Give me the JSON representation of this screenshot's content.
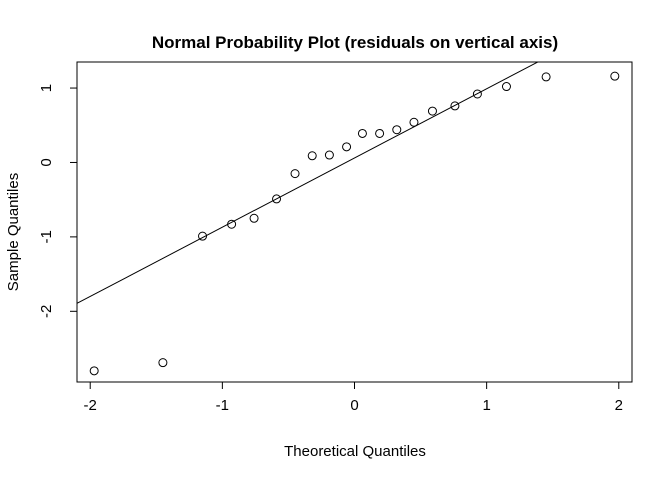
{
  "chart_data": {
    "type": "scatter",
    "title": "Normal Probability Plot (residuals on vertical axis)",
    "xlabel": "Theoretical Quantiles",
    "ylabel": "Sample Quantiles",
    "xlim": [
      -2.1,
      2.1
    ],
    "ylim": [
      -2.95,
      1.35
    ],
    "x_ticks": [
      -2,
      -1,
      0,
      1,
      2
    ],
    "x_tick_labels": [
      "-2",
      "-1",
      "0",
      "1",
      "2"
    ],
    "y_ticks": [
      -2,
      -1,
      0,
      1
    ],
    "y_tick_labels": [
      "-2",
      "-1",
      "0",
      "1"
    ],
    "grid": false,
    "points": {
      "x": [
        -1.97,
        -1.45,
        -1.15,
        -0.93,
        -0.76,
        -0.59,
        -0.45,
        -0.32,
        -0.19,
        -0.06,
        0.06,
        0.19,
        0.32,
        0.45,
        0.59,
        0.76,
        0.93,
        1.15,
        1.45,
        1.97
      ],
      "y": [
        -2.8,
        -2.69,
        -0.99,
        -0.83,
        -0.75,
        -0.49,
        -0.15,
        0.09,
        0.1,
        0.21,
        0.39,
        0.39,
        0.44,
        0.54,
        0.69,
        0.76,
        0.92,
        1.02,
        1.15,
        1.16
      ]
    },
    "reference_line": {
      "intercept": 0.06,
      "slope": 0.93
    }
  }
}
